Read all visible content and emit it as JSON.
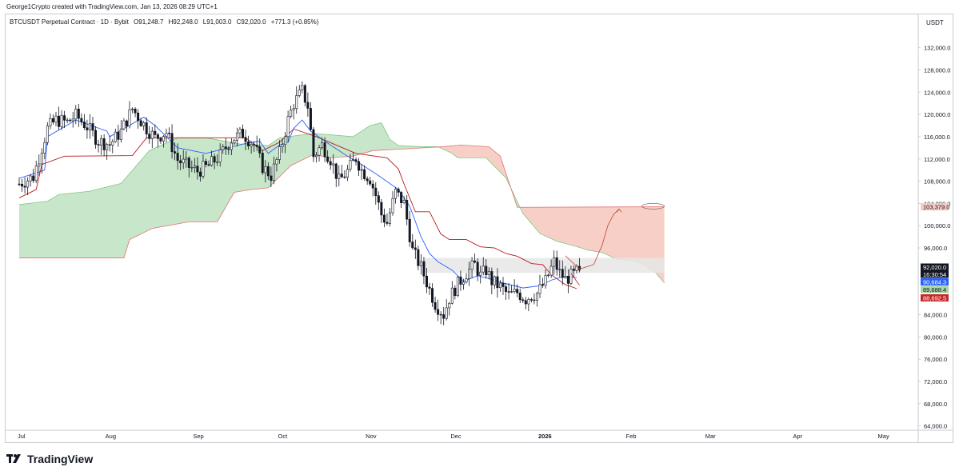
{
  "header": {
    "credit": "George1Crypto created with TradingView.com, Jan 13, 2026 08:29 UTC+1"
  },
  "legend": {
    "symbol": "BTCUSDT Perpetual Contract · 1D · Bybit",
    "open": "O91,248.7",
    "high": "H92,248.0",
    "low": "L91,003.0",
    "close": "C92,020.0",
    "change": "+771.3 (+0.85%)"
  },
  "currency": "USDT",
  "branding": {
    "name": "TradingView"
  },
  "price_badges": [
    {
      "label": "103,379.0",
      "value": 103379.0,
      "color": "#f7c9c4",
      "text_color": "#131722"
    },
    {
      "label": "92,020.0",
      "value": 92020.0,
      "color": "#131722",
      "text_color": "#ffffff"
    },
    {
      "label": "16:30:54",
      "value": 91200,
      "color": "#131722",
      "text_color": "#ffffff"
    },
    {
      "label": "90,684.3",
      "value": 90684.3,
      "color": "#2962ff",
      "text_color": "#ffffff"
    },
    {
      "label": "89,688.4",
      "value": 89688.4,
      "color": "#a5d6a7",
      "text_color": "#131722"
    },
    {
      "label": "88,692.5",
      "value": 88692.5,
      "color": "#c62828",
      "text_color": "#ffffff"
    }
  ],
  "colors": {
    "up": "#26a69a",
    "down": "#131722",
    "candle": "#131722",
    "tenkan": "#2962ff",
    "kijun": "#b71c1c",
    "cloud_bull": "#c8e6c9",
    "cloud_bear": "#f8cfc6",
    "zone": "#e6e6e6",
    "arrow": "#c2574b"
  },
  "chart_data": {
    "type": "candlestick",
    "title": "BTCUSDT Perpetual Contract · 1D · Bybit",
    "ylim": [
      62500,
      135000
    ],
    "y_ticks": [
      {
        "value": 132000,
        "label": "132,000.0"
      },
      {
        "value": 128000,
        "label": "128,000.0"
      },
      {
        "value": 124000,
        "label": "124,000.0"
      },
      {
        "value": 120000,
        "label": "120,000.0"
      },
      {
        "value": 116000,
        "label": "116,000.0"
      },
      {
        "value": 112000,
        "label": "112,000.0"
      },
      {
        "value": 108000,
        "label": "108,000.0"
      },
      {
        "value": 104000,
        "label": "104,000.0"
      },
      {
        "value": 100000,
        "label": "100,000.0"
      },
      {
        "value": 96000,
        "label": "96,000.0"
      },
      {
        "value": 84000,
        "label": "84,000.0"
      },
      {
        "value": 80000,
        "label": "80,000.0"
      },
      {
        "value": 76000,
        "label": "76,000.0"
      },
      {
        "value": 72000,
        "label": "72,000.0"
      },
      {
        "value": 68000,
        "label": "68,000.0"
      },
      {
        "value": 64000,
        "label": "64,000.0"
      }
    ],
    "x_ticks": [
      {
        "day": 0,
        "label": "Jul",
        "bold": false
      },
      {
        "day": 31,
        "label": "Aug",
        "bold": false
      },
      {
        "day": 62,
        "label": "Sep",
        "bold": false
      },
      {
        "day": 92,
        "label": "Oct",
        "bold": false
      },
      {
        "day": 123,
        "label": "Nov",
        "bold": false
      },
      {
        "day": 153,
        "label": "Dec",
        "bold": false
      },
      {
        "day": 184,
        "label": "2026",
        "bold": true
      },
      {
        "day": 215,
        "label": "Feb",
        "bold": false
      },
      {
        "day": 243,
        "label": "Mar",
        "bold": false
      },
      {
        "day": 274,
        "label": "Apr",
        "bold": false
      },
      {
        "day": 304,
        "label": "May",
        "bold": false
      }
    ],
    "candles_anchor": [
      [
        0,
        107500
      ],
      [
        5,
        108800
      ],
      [
        10,
        117500
      ],
      [
        13,
        119000
      ],
      [
        17,
        118600
      ],
      [
        20,
        119800
      ],
      [
        24,
        117800
      ],
      [
        28,
        115200
      ],
      [
        32,
        114600
      ],
      [
        36,
        117000
      ],
      [
        40,
        121000
      ],
      [
        45,
        117500
      ],
      [
        48,
        115800
      ],
      [
        52,
        116800
      ],
      [
        56,
        111800
      ],
      [
        60,
        110600
      ],
      [
        63,
        109800
      ],
      [
        67,
        110800
      ],
      [
        71,
        112600
      ],
      [
        75,
        115500
      ],
      [
        79,
        116600
      ],
      [
        83,
        114500
      ],
      [
        86,
        110600
      ],
      [
        89,
        109000
      ],
      [
        92,
        113000
      ],
      [
        95,
        119000
      ],
      [
        97,
        122000
      ],
      [
        100,
        124200
      ],
      [
        102,
        121500
      ],
      [
        104,
        112500
      ],
      [
        107,
        114500
      ],
      [
        110,
        112000
      ],
      [
        113,
        108000
      ],
      [
        116,
        109800
      ],
      [
        119,
        112200
      ],
      [
        121,
        110000
      ],
      [
        124,
        108500
      ],
      [
        126,
        105500
      ],
      [
        128,
        102000
      ],
      [
        130,
        100500
      ],
      [
        133,
        106000
      ],
      [
        136,
        104000
      ],
      [
        139,
        95500
      ],
      [
        142,
        92500
      ],
      [
        145,
        88500
      ],
      [
        147,
        86000
      ],
      [
        150,
        84000
      ],
      [
        152,
        87000
      ],
      [
        155,
        89500
      ],
      [
        158,
        91500
      ],
      [
        161,
        93000
      ],
      [
        163,
        91000
      ],
      [
        165,
        92000
      ],
      [
        167,
        90000
      ],
      [
        170,
        89000
      ],
      [
        173,
        87500
      ],
      [
        176,
        88000
      ],
      [
        179,
        86800
      ],
      [
        181,
        87500
      ],
      [
        183,
        87800
      ],
      [
        186,
        90000
      ],
      [
        189,
        93500
      ],
      [
        191,
        91500
      ],
      [
        193,
        90400
      ],
      [
        196,
        91200
      ],
      [
        198,
        92020
      ]
    ],
    "tenkan": [
      [
        0,
        108500
      ],
      [
        9,
        110000
      ],
      [
        10,
        116000
      ],
      [
        20,
        119000
      ],
      [
        31,
        117000
      ],
      [
        32,
        116000
      ],
      [
        44,
        119500
      ],
      [
        48,
        118000
      ],
      [
        56,
        114000
      ],
      [
        66,
        113000
      ],
      [
        70,
        113500
      ],
      [
        80,
        114800
      ],
      [
        85,
        115200
      ],
      [
        88,
        113000
      ],
      [
        92,
        114500
      ],
      [
        95,
        115000
      ],
      [
        97,
        117500
      ],
      [
        100,
        119000
      ],
      [
        103,
        117000
      ],
      [
        110,
        114500
      ],
      [
        116,
        112500
      ],
      [
        121,
        111000
      ],
      [
        127,
        109000
      ],
      [
        134,
        106500
      ],
      [
        138,
        103500
      ],
      [
        142,
        98000
      ],
      [
        145,
        95000
      ],
      [
        148,
        93500
      ],
      [
        153,
        92000
      ],
      [
        157,
        90000
      ],
      [
        162,
        91000
      ],
      [
        166,
        90500
      ],
      [
        171,
        89700
      ],
      [
        178,
        88800
      ],
      [
        184,
        89200
      ],
      [
        188,
        90200
      ],
      [
        192,
        90800
      ],
      [
        197,
        90684
      ]
    ],
    "kijun": [
      [
        0,
        105000
      ],
      [
        6,
        106500
      ],
      [
        8,
        111000
      ],
      [
        16,
        112500
      ],
      [
        40,
        112600
      ],
      [
        45,
        115800
      ],
      [
        80,
        115800
      ],
      [
        86,
        113500
      ],
      [
        92,
        115000
      ],
      [
        97,
        117400
      ],
      [
        105,
        116000
      ],
      [
        119,
        113000
      ],
      [
        130,
        112200
      ],
      [
        134,
        110200
      ],
      [
        136,
        107500
      ],
      [
        140,
        102500
      ],
      [
        145,
        102500
      ],
      [
        149,
        98500
      ],
      [
        152,
        97500
      ],
      [
        158,
        97500
      ],
      [
        163,
        96200
      ],
      [
        168,
        96000
      ],
      [
        172,
        95000
      ],
      [
        176,
        94500
      ],
      [
        181,
        93200
      ],
      [
        185,
        93000
      ],
      [
        188,
        91200
      ],
      [
        193,
        89400
      ],
      [
        197,
        88692
      ]
    ],
    "senkou_a": [
      [
        0,
        103800
      ],
      [
        10,
        104400
      ],
      [
        14,
        105600
      ],
      [
        25,
        106200
      ],
      [
        36,
        107600
      ],
      [
        46,
        113500
      ],
      [
        56,
        115800
      ],
      [
        66,
        115800
      ],
      [
        78,
        114700
      ],
      [
        88,
        114400
      ],
      [
        92,
        115800
      ],
      [
        104,
        116600
      ],
      [
        118,
        116000
      ],
      [
        124,
        118000
      ],
      [
        128,
        118500
      ],
      [
        131,
        115500
      ],
      [
        134,
        114400
      ],
      [
        142,
        114200
      ],
      [
        148,
        114200
      ],
      [
        153,
        113000
      ],
      [
        155,
        112200
      ],
      [
        165,
        112200
      ],
      [
        172,
        108600
      ],
      [
        178,
        102200
      ],
      [
        184,
        98600
      ],
      [
        190,
        97200
      ],
      [
        196,
        96400
      ],
      [
        201,
        95600
      ],
      [
        206,
        95200
      ],
      [
        211,
        94000
      ],
      [
        216,
        93800
      ],
      [
        220,
        93200
      ],
      [
        225,
        91500
      ],
      [
        228,
        89700
      ]
    ],
    "senkou_b": [
      [
        0,
        94200
      ],
      [
        37,
        94200
      ],
      [
        39,
        97500
      ],
      [
        47,
        99500
      ],
      [
        60,
        100700
      ],
      [
        70,
        100700
      ],
      [
        76,
        106000
      ],
      [
        82,
        106500
      ],
      [
        88,
        106800
      ],
      [
        96,
        110800
      ],
      [
        104,
        112800
      ],
      [
        110,
        112200
      ],
      [
        118,
        112500
      ],
      [
        125,
        113500
      ],
      [
        150,
        114200
      ],
      [
        156,
        114500
      ],
      [
        166,
        114200
      ],
      [
        170,
        112500
      ],
      [
        176,
        103300
      ],
      [
        228,
        103400
      ]
    ],
    "annotations": {
      "zone": {
        "day_start": 143,
        "day_end": 228,
        "low": 91500,
        "high": 94200
      },
      "path": [
        [
          193,
          94600
        ],
        [
          198,
          92200
        ],
        [
          203,
          93000
        ],
        [
          206,
          96500
        ],
        [
          208,
          100000
        ],
        [
          210,
          102000
        ],
        [
          212,
          103000
        ]
      ],
      "red_tail": [
        [
          195,
          91400
        ],
        [
          198,
          89300
        ]
      ],
      "ellipse": {
        "day": 224,
        "value": 103500
      }
    }
  }
}
